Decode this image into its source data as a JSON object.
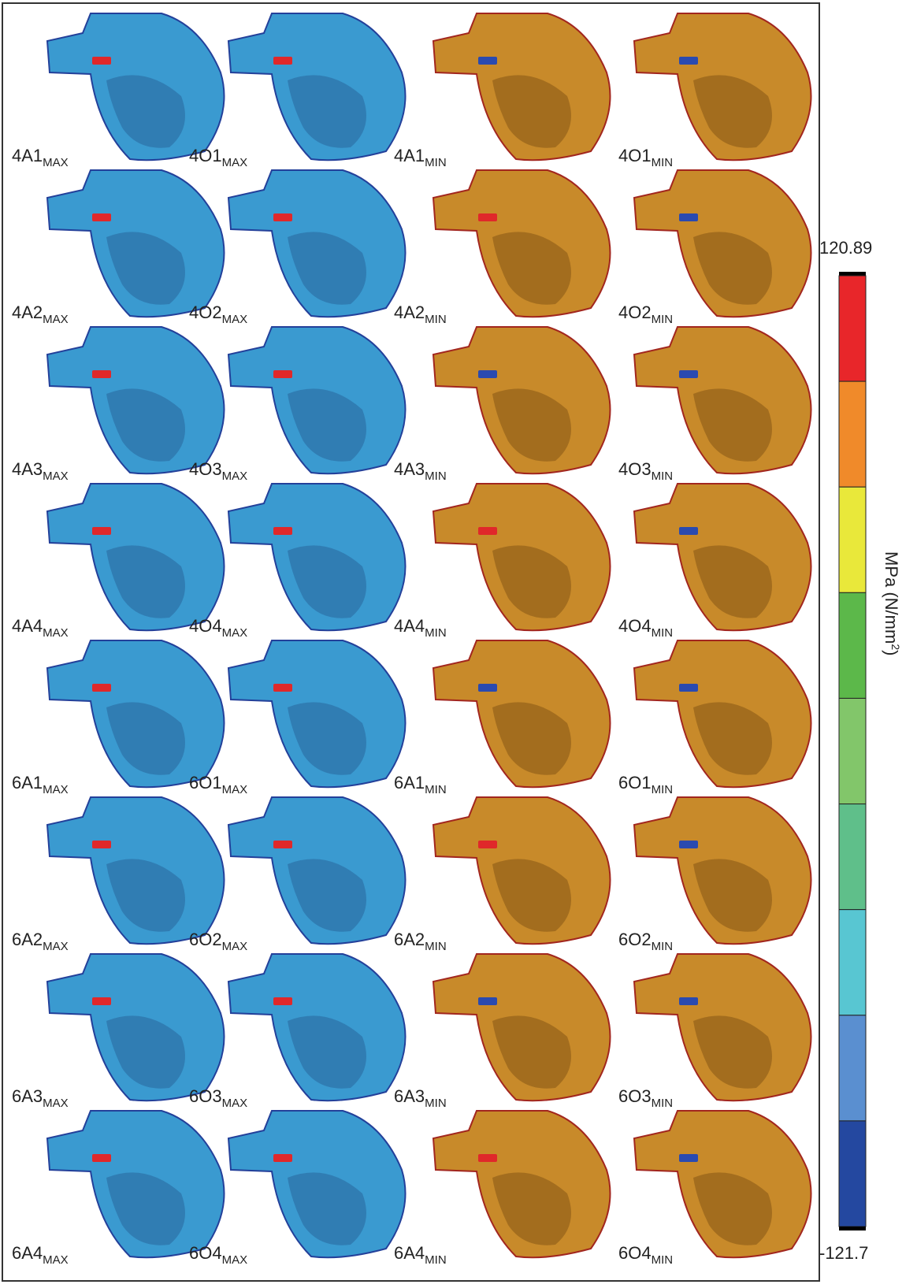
{
  "panels": [
    [
      {
        "base": "4A1",
        "sub": "MAX"
      },
      {
        "base": "4O1",
        "sub": "MAX"
      },
      {
        "base": "4A1",
        "sub": "MIN"
      },
      {
        "base": "4O1",
        "sub": "MIN"
      }
    ],
    [
      {
        "base": "4A2",
        "sub": "MAX"
      },
      {
        "base": "4O2",
        "sub": "MAX"
      },
      {
        "base": "4A2",
        "sub": "MIN"
      },
      {
        "base": "4O2",
        "sub": "MIN"
      }
    ],
    [
      {
        "base": "4A3",
        "sub": "MAX"
      },
      {
        "base": "4O3",
        "sub": "MAX"
      },
      {
        "base": "4A3",
        "sub": "MIN"
      },
      {
        "base": "4O3",
        "sub": "MIN"
      }
    ],
    [
      {
        "base": "4A4",
        "sub": "MAX"
      },
      {
        "base": "4O4",
        "sub": "MAX"
      },
      {
        "base": "4A4",
        "sub": "MIN"
      },
      {
        "base": "4O4",
        "sub": "MIN"
      }
    ],
    [
      {
        "base": "6A1",
        "sub": "MAX"
      },
      {
        "base": "6O1",
        "sub": "MAX"
      },
      {
        "base": "6A1",
        "sub": "MIN"
      },
      {
        "base": "6O1",
        "sub": "MIN"
      }
    ],
    [
      {
        "base": "6A2",
        "sub": "MAX"
      },
      {
        "base": "6O2",
        "sub": "MAX"
      },
      {
        "base": "6A2",
        "sub": "MIN"
      },
      {
        "base": "6O2",
        "sub": "MIN"
      }
    ],
    [
      {
        "base": "6A3",
        "sub": "MAX"
      },
      {
        "base": "6O3",
        "sub": "MAX"
      },
      {
        "base": "6A3",
        "sub": "MIN"
      },
      {
        "base": "6O3",
        "sub": "MIN"
      }
    ],
    [
      {
        "base": "6A4",
        "sub": "MAX"
      },
      {
        "base": "6O4",
        "sub": "MAX"
      },
      {
        "base": "6A4",
        "sub": "MIN"
      },
      {
        "base": "6O4",
        "sub": "MIN"
      }
    ]
  ],
  "colorbar": {
    "max": 120.89,
    "min": -121.7,
    "unit": {
      "text": "MPa (N/mm",
      "sup": "2",
      "tail": ")"
    },
    "colors": [
      "#e8262a",
      "#f08a2a",
      "#e9e83a",
      "#5cb84a",
      "#82c66a",
      "#5fbf8a",
      "#58c6d2",
      "#5a8fd0",
      "#2448a0"
    ]
  }
}
